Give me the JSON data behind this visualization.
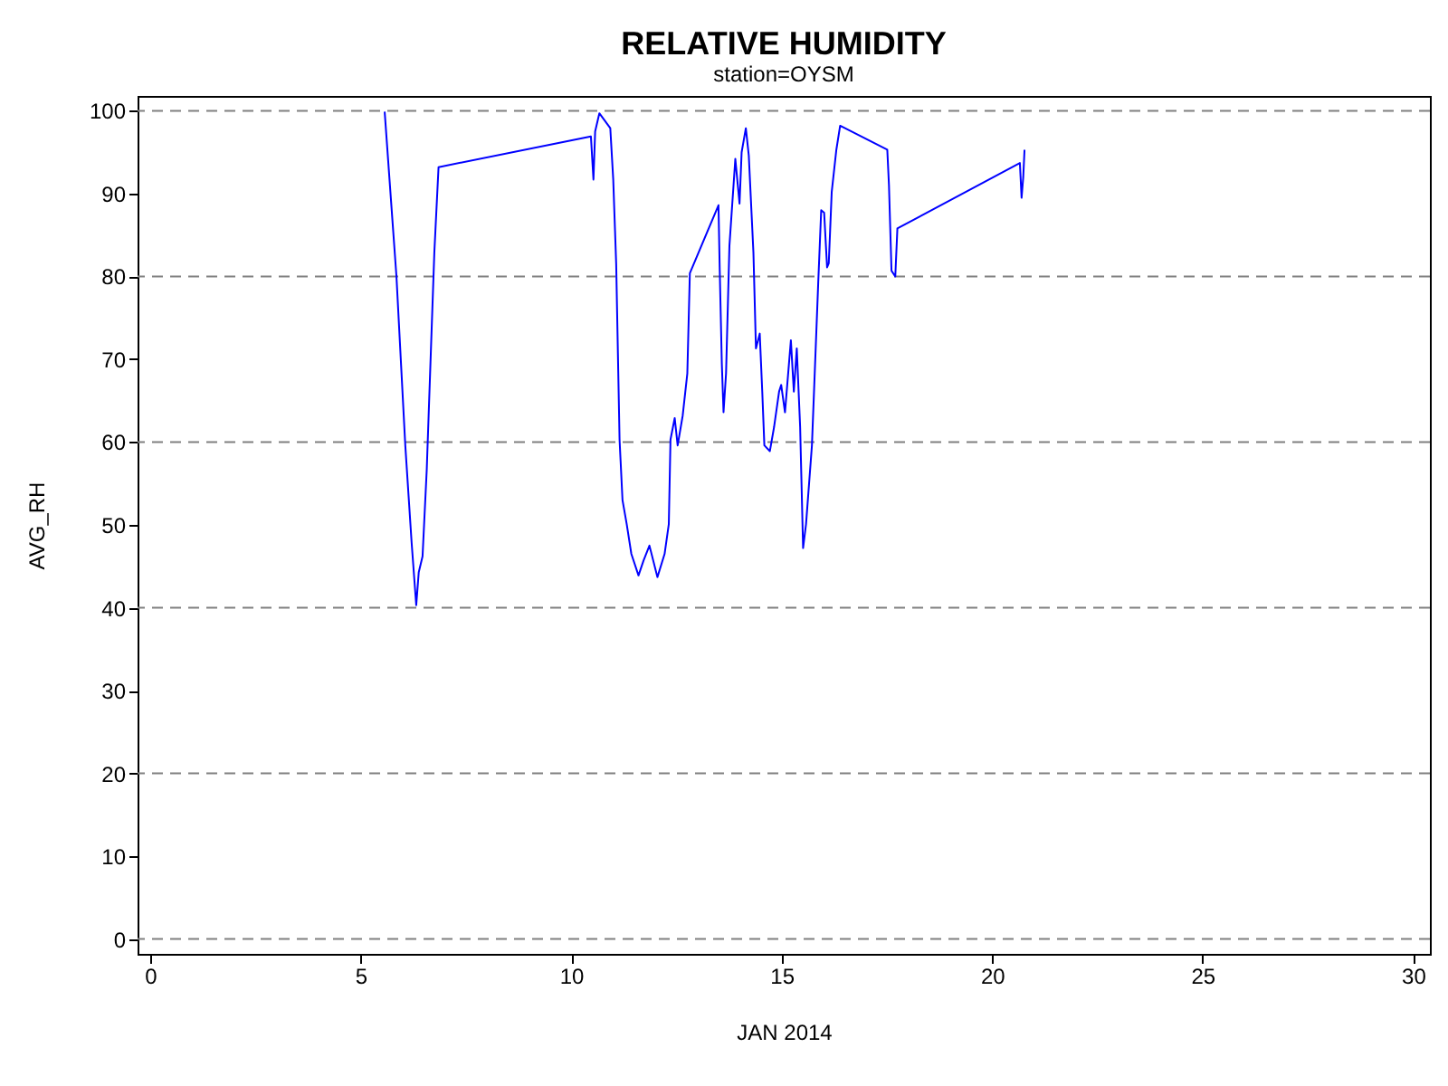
{
  "chart_data": {
    "type": "line",
    "title": "RELATIVE HUMIDITY",
    "subtitle": "station=OYSM",
    "xlabel": "JAN 2014",
    "ylabel": "AVG_RH",
    "xlim": [
      -0.3,
      30.4
    ],
    "xticks": [
      0,
      5,
      10,
      15,
      20,
      25,
      30
    ],
    "ylim": [
      -1.8,
      101.8
    ],
    "yticks": [
      0,
      10,
      20,
      30,
      40,
      50,
      60,
      70,
      80,
      90,
      100
    ],
    "grid": false,
    "marker": "none",
    "line_style": "solid",
    "ref_lines": [
      {
        "axis": "y",
        "value": 0,
        "color": "#808080",
        "line_style": "dashed"
      },
      {
        "axis": "y",
        "value": 20,
        "color": "#808080",
        "line_style": "dashed"
      },
      {
        "axis": "y",
        "value": 40,
        "color": "#808080",
        "line_style": "dashed"
      },
      {
        "axis": "y",
        "value": 60,
        "color": "#808080",
        "line_style": "dashed"
      },
      {
        "axis": "y",
        "value": 80,
        "color": "#808080",
        "line_style": "dashed"
      },
      {
        "axis": "y",
        "value": 100,
        "color": "#808080",
        "line_style": "dashed"
      }
    ],
    "series": [
      {
        "color": "#0000ff",
        "x": [
          5.57,
          5.85,
          6.06,
          6.21,
          6.32,
          6.38,
          6.47,
          6.57,
          6.67,
          6.75,
          6.85,
          10.47,
          10.53,
          10.57,
          10.67,
          10.93,
          11.0,
          11.07,
          11.15,
          11.22,
          11.32,
          11.43,
          11.6,
          11.72,
          11.86,
          12.05,
          12.22,
          12.32,
          12.36,
          12.46,
          12.53,
          12.65,
          12.76,
          12.82,
          13.5,
          13.53,
          13.58,
          13.62,
          13.68,
          13.76,
          13.9,
          14.0,
          14.05,
          14.15,
          14.22,
          14.33,
          14.39,
          14.48,
          14.54,
          14.59,
          14.72,
          14.82,
          14.94,
          14.99,
          15.08,
          15.22,
          15.29,
          15.36,
          15.44,
          15.51,
          15.58,
          15.72,
          15.87,
          15.94,
          16.01,
          16.08,
          16.12,
          16.19,
          16.3,
          16.39,
          17.51,
          17.55,
          17.61,
          17.7,
          17.75,
          20.66,
          20.7,
          20.74,
          20.77
        ],
        "values": [
          99.9,
          80,
          59.6,
          47.9,
          40.3,
          44.3,
          46.2,
          56.7,
          71.3,
          82.9,
          93.2,
          96.9,
          91.7,
          97.5,
          99.7,
          97.9,
          91.7,
          81.5,
          60.3,
          53,
          50.1,
          46.5,
          43.9,
          45.7,
          47.5,
          43.7,
          46.5,
          50.1,
          60.3,
          62.9,
          59.6,
          63.2,
          68.3,
          80.4,
          88.6,
          80.7,
          69.4,
          63.6,
          68.3,
          83.7,
          94.2,
          88.8,
          95.0,
          97.9,
          94.6,
          82.9,
          71.3,
          73.1,
          66.1,
          59.6,
          58.9,
          61.8,
          66.1,
          66.9,
          63.6,
          72.3,
          66.1,
          71.3,
          61.8,
          47.2,
          50.1,
          59.6,
          79.3,
          88,
          87.7,
          81.1,
          81.6,
          90.2,
          95.3,
          98.2,
          95.3,
          91.0,
          80.7,
          80,
          85.8,
          93.7,
          89.5,
          92,
          95.3
        ]
      }
    ]
  }
}
